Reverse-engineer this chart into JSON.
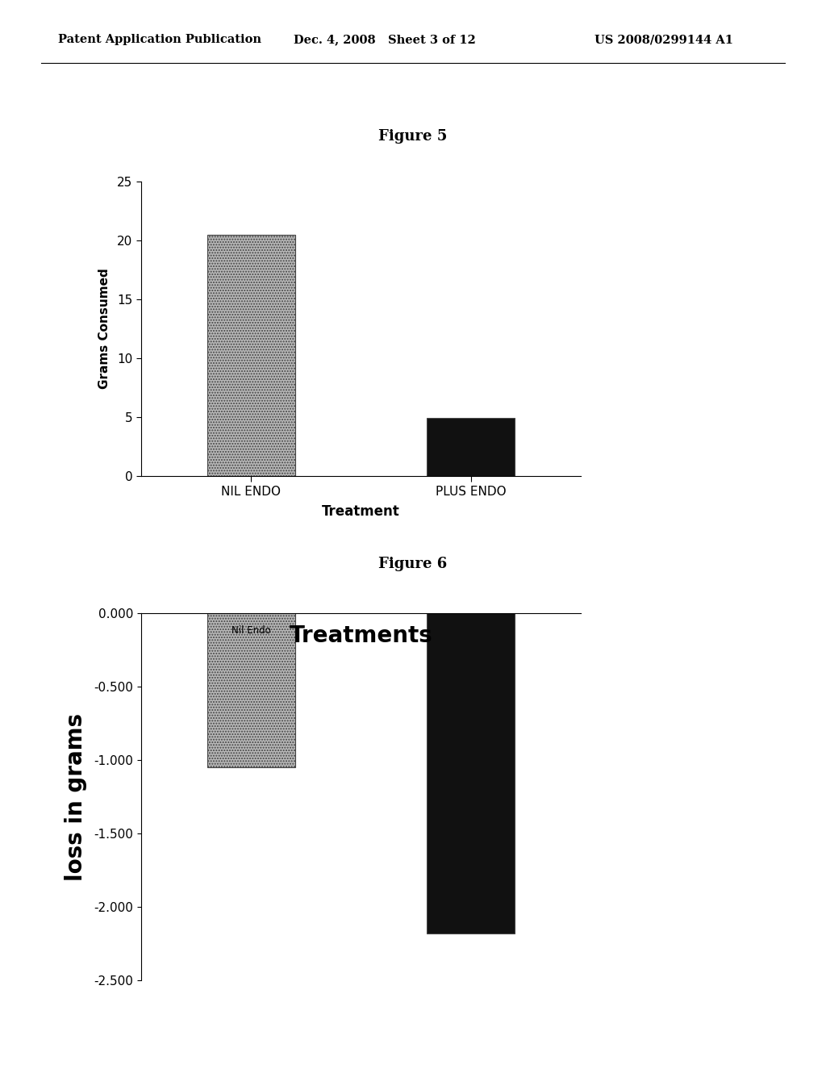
{
  "page_header_left": "Patent Application Publication",
  "page_header_mid": "Dec. 4, 2008   Sheet 3 of 12",
  "page_header_right": "US 2008/0299144 A1",
  "fig5_title": "Figure 5",
  "fig5_categories": [
    "NIL ENDO",
    "PLUS ENDO"
  ],
  "fig5_values": [
    20.5,
    4.9
  ],
  "fig5_bar_colors": [
    "#b0b0b0",
    "#111111"
  ],
  "fig5_ylabel": "Grams Consumed",
  "fig5_xlabel": "Treatment",
  "fig5_ylim": [
    0,
    25
  ],
  "fig5_yticks": [
    0,
    5,
    10,
    15,
    20,
    25
  ],
  "fig6_title": "Figure 6",
  "fig6_values": [
    -1.05,
    -2.18
  ],
  "fig6_bar_colors": [
    "#b0b0b0",
    "#111111"
  ],
  "fig6_ylabel": "loss in grams",
  "fig6_xlabel": "Treatments",
  "fig6_ylim": [
    -2.5,
    0.0
  ],
  "fig6_yticks": [
    0.0,
    -0.5,
    -1.0,
    -1.5,
    -2.0,
    -2.5
  ],
  "fig6_annotation": "Nil Endo",
  "bg_color": "#ffffff",
  "font_color": "#000000"
}
